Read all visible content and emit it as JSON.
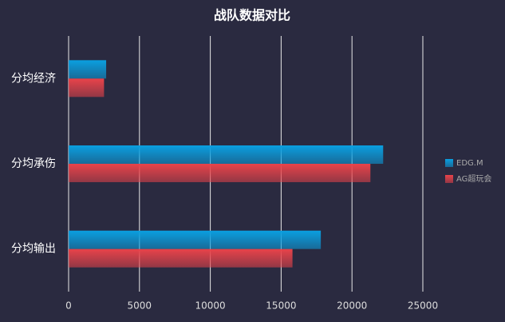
{
  "chart_data": {
    "type": "hbar",
    "title": "战队数据对比",
    "categories": [
      "分均经济",
      "分均承伤",
      "分均输出"
    ],
    "series": [
      {
        "name": "EDG.M",
        "color": "#0a9fe0",
        "values": [
          2650,
          22200,
          17800
        ]
      },
      {
        "name": "AG超玩会",
        "color": "#e8434a",
        "values": [
          2500,
          21300,
          15800
        ]
      }
    ],
    "xlim": [
      0,
      25000
    ],
    "xticks": [
      0,
      5000,
      10000,
      15000,
      20000,
      25000
    ],
    "grid": true,
    "legend": "right"
  }
}
